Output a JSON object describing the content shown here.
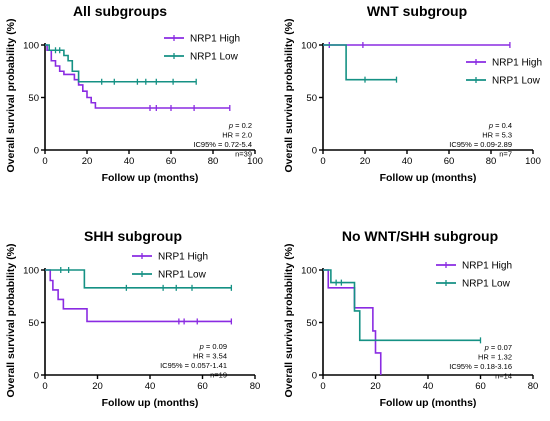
{
  "colors": {
    "high": "#8a2be2",
    "low": "#159184",
    "axis": "#000000"
  },
  "chart_data": [
    {
      "type": "line",
      "title": "All subgroups",
      "xlabel": "Follow up (months)",
      "ylabel": "Overall survival probability (%)",
      "xlim": [
        0,
        100
      ],
      "ylim": [
        0,
        100
      ],
      "xticks": [
        0,
        20,
        40,
        60,
        80,
        100
      ],
      "yticks": [
        0,
        50,
        100
      ],
      "legend": "top-right",
      "stats": [
        "p = 0.2",
        "HR = 2.0",
        "IC95% = 0.72-5.4",
        "n=39"
      ],
      "series": [
        {
          "name": "NRP1 High",
          "steps": [
            [
              0,
              100
            ],
            [
              1,
              95
            ],
            [
              3,
              85
            ],
            [
              5,
              80
            ],
            [
              7,
              75
            ],
            [
              9,
              72
            ],
            [
              14,
              67
            ],
            [
              16,
              62
            ],
            [
              18,
              56
            ],
            [
              20,
              50
            ],
            [
              22,
              45
            ],
            [
              24,
              40
            ],
            [
              88,
              40
            ]
          ],
          "censored": [
            [
              50,
              40
            ],
            [
              53,
              40
            ],
            [
              60,
              40
            ],
            [
              71,
              40
            ],
            [
              88,
              40
            ]
          ]
        },
        {
          "name": "NRP1 Low",
          "steps": [
            [
              0,
              100
            ],
            [
              2,
              95
            ],
            [
              9,
              90
            ],
            [
              11,
              85
            ],
            [
              13,
              75
            ],
            [
              16,
              65
            ],
            [
              72,
              65
            ]
          ],
          "censored": [
            [
              5,
              95
            ],
            [
              7,
              95
            ],
            [
              27,
              65
            ],
            [
              33,
              65
            ],
            [
              44,
              65
            ],
            [
              48,
              65
            ],
            [
              53,
              65
            ],
            [
              61,
              65
            ],
            [
              72,
              65
            ]
          ]
        }
      ]
    },
    {
      "type": "line",
      "title": "WNT subgroup",
      "xlabel": "Follow up (months)",
      "ylabel": "Overall survival probability (%)",
      "xlim": [
        0,
        100
      ],
      "ylim": [
        0,
        100
      ],
      "xticks": [
        0,
        20,
        40,
        60,
        80,
        100
      ],
      "yticks": [
        0,
        50,
        100
      ],
      "legend": "right",
      "stats": [
        "p = 0.4",
        "HR = 5.3",
        "IC95% = 0.09-2.89",
        "n=7"
      ],
      "series": [
        {
          "name": "NRP1 High",
          "steps": [
            [
              0,
              100
            ],
            [
              89,
              100
            ]
          ],
          "censored": [
            [
              3,
              100
            ],
            [
              19,
              100
            ],
            [
              89,
              100
            ]
          ]
        },
        {
          "name": "NRP1 Low",
          "steps": [
            [
              0,
              100
            ],
            [
              11,
              100
            ],
            [
              11,
              67
            ],
            [
              35,
              67
            ]
          ],
          "censored": [
            [
              20,
              67
            ],
            [
              35,
              67
            ]
          ]
        }
      ]
    },
    {
      "type": "line",
      "title": "SHH subgroup",
      "xlabel": "Follow up (months)",
      "ylabel": "Overall survival probability (%)",
      "xlim": [
        0,
        80
      ],
      "ylim": [
        0,
        100
      ],
      "xticks": [
        0,
        20,
        40,
        60,
        80
      ],
      "yticks": [
        0,
        50,
        100
      ],
      "legend": "top-right",
      "stats": [
        "p = 0.09",
        "HR = 3.54",
        "IC95% = 0.057-1.41",
        "n=19"
      ],
      "series": [
        {
          "name": "NRP1 High",
          "steps": [
            [
              0,
              100
            ],
            [
              2,
              90
            ],
            [
              3,
              81
            ],
            [
              5,
              72
            ],
            [
              7,
              63
            ],
            [
              16,
              63
            ],
            [
              16,
              51
            ],
            [
              71,
              51
            ]
          ],
          "censored": [
            [
              51,
              51
            ],
            [
              53,
              51
            ],
            [
              58,
              51
            ],
            [
              71,
              51
            ]
          ]
        },
        {
          "name": "NRP1 Low",
          "steps": [
            [
              0,
              100
            ],
            [
              15,
              100
            ],
            [
              15,
              83
            ],
            [
              71,
              83
            ]
          ],
          "censored": [
            [
              6,
              100
            ],
            [
              9,
              100
            ],
            [
              31,
              83
            ],
            [
              45,
              83
            ],
            [
              50,
              83
            ],
            [
              56,
              83
            ],
            [
              71,
              83
            ]
          ]
        }
      ]
    },
    {
      "type": "line",
      "title": "No WNT/SHH subgroup",
      "xlabel": "Follow up (months)",
      "ylabel": "Overall survival probability (%)",
      "xlim": [
        0,
        80
      ],
      "ylim": [
        0,
        100
      ],
      "xticks": [
        0,
        20,
        40,
        60,
        80
      ],
      "yticks": [
        0,
        50,
        100
      ],
      "legend": "top-right",
      "stats": [
        "p = 0.07",
        "HR = 1.32",
        "IC95% = 0.18-3.16",
        "n=14"
      ],
      "series": [
        {
          "name": "NRP1 High",
          "steps": [
            [
              0,
              100
            ],
            [
              2,
              83
            ],
            [
              10,
              83
            ],
            [
              12,
              64
            ],
            [
              18,
              64
            ],
            [
              19,
              42
            ],
            [
              20,
              21
            ],
            [
              22,
              21
            ],
            [
              22,
              0
            ]
          ],
          "censored": []
        },
        {
          "name": "NRP1 Low",
          "steps": [
            [
              0,
              100
            ],
            [
              3,
              88
            ],
            [
              11,
              88
            ],
            [
              12,
              61
            ],
            [
              14,
              33
            ],
            [
              60,
              33
            ]
          ],
          "censored": [
            [
              5,
              88
            ],
            [
              7,
              88
            ],
            [
              60,
              33
            ]
          ]
        }
      ]
    }
  ]
}
